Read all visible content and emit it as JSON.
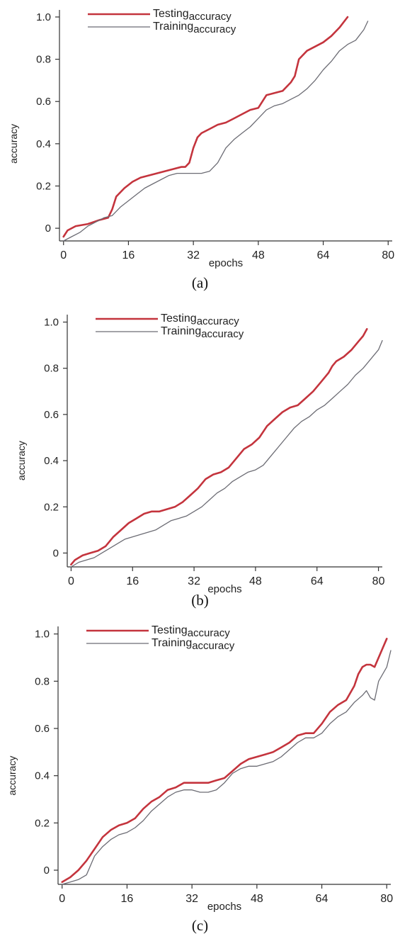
{
  "chart_data": [
    {
      "type": "line",
      "caption": "(a)",
      "xlabel": "epochs",
      "ylabel": "accuracy",
      "xticks": [
        0,
        16,
        32,
        48,
        64,
        80
      ],
      "yticks": [
        0,
        0.2,
        0.4,
        0.6,
        0.8,
        1.0
      ],
      "ytick_labels": [
        "0",
        "0.2",
        "0.4",
        "0.6",
        "0.8",
        "1.0"
      ],
      "xlim": [
        -1,
        81
      ],
      "ylim": [
        -0.06,
        1.02
      ],
      "legend": "top-left",
      "series": [
        {
          "name": "Testing accuracy",
          "legend_main": "Testing",
          "legend_sub": "accuracy",
          "color": "#c4343d",
          "x": [
            0,
            1,
            3,
            6,
            9,
            11,
            12,
            13,
            15,
            17,
            19,
            21,
            23,
            25,
            27,
            29,
            30,
            31,
            32,
            33,
            34,
            36,
            38,
            40,
            42,
            44,
            46,
            48,
            50,
            52,
            54,
            56,
            57,
            58,
            60,
            62,
            64,
            66,
            68,
            70
          ],
          "y": [
            -0.04,
            -0.01,
            0.01,
            0.02,
            0.04,
            0.05,
            0.09,
            0.15,
            0.19,
            0.22,
            0.24,
            0.25,
            0.26,
            0.27,
            0.28,
            0.29,
            0.29,
            0.31,
            0.38,
            0.43,
            0.45,
            0.47,
            0.49,
            0.5,
            0.52,
            0.54,
            0.56,
            0.57,
            0.63,
            0.64,
            0.65,
            0.69,
            0.72,
            0.8,
            0.84,
            0.86,
            0.88,
            0.91,
            0.95,
            1.0
          ]
        },
        {
          "name": "Training accuracy",
          "legend_main": "Training",
          "legend_sub": "accuracy",
          "color": "#6c6c74",
          "x": [
            0,
            2,
            4,
            6,
            8,
            10,
            12,
            14,
            16,
            18,
            20,
            22,
            24,
            26,
            28,
            30,
            32,
            34,
            36,
            38,
            40,
            42,
            44,
            46,
            48,
            50,
            52,
            54,
            56,
            58,
            60,
            62,
            64,
            66,
            68,
            70,
            72,
            74,
            75
          ],
          "y": [
            -0.06,
            -0.04,
            -0.02,
            0.01,
            0.03,
            0.05,
            0.06,
            0.1,
            0.13,
            0.16,
            0.19,
            0.21,
            0.23,
            0.25,
            0.26,
            0.26,
            0.26,
            0.26,
            0.27,
            0.31,
            0.38,
            0.42,
            0.45,
            0.48,
            0.52,
            0.56,
            0.58,
            0.59,
            0.61,
            0.63,
            0.66,
            0.7,
            0.75,
            0.79,
            0.84,
            0.87,
            0.89,
            0.94,
            0.98
          ]
        }
      ]
    },
    {
      "type": "line",
      "caption": "(b)",
      "xlabel": "epochs",
      "ylabel": "accuracy",
      "xticks": [
        0,
        16,
        32,
        48,
        64,
        80
      ],
      "yticks": [
        0,
        0.2,
        0.4,
        0.6,
        0.8,
        1.0
      ],
      "ytick_labels": [
        "0",
        "0.2",
        "0.4",
        "0.6",
        "0.8",
        "1.0"
      ],
      "xlim": [
        -1,
        81
      ],
      "ylim": [
        -0.06,
        1.02
      ],
      "legend": "top-left",
      "series": [
        {
          "name": "Testing accuracy",
          "legend_main": "Testing",
          "legend_sub": "accuracy",
          "color": "#c4343d",
          "x": [
            0,
            1,
            3,
            5,
            7,
            9,
            11,
            13,
            15,
            17,
            19,
            21,
            23,
            25,
            27,
            29,
            31,
            33,
            35,
            37,
            39,
            41,
            43,
            45,
            47,
            49,
            51,
            53,
            55,
            57,
            59,
            61,
            63,
            65,
            67,
            68,
            69,
            71,
            73,
            75,
            76,
            77
          ],
          "y": [
            -0.05,
            -0.03,
            -0.01,
            0.0,
            0.01,
            0.03,
            0.07,
            0.1,
            0.13,
            0.15,
            0.17,
            0.18,
            0.18,
            0.19,
            0.2,
            0.22,
            0.25,
            0.28,
            0.32,
            0.34,
            0.35,
            0.37,
            0.41,
            0.45,
            0.47,
            0.5,
            0.55,
            0.58,
            0.61,
            0.63,
            0.64,
            0.67,
            0.7,
            0.74,
            0.78,
            0.81,
            0.83,
            0.85,
            0.88,
            0.92,
            0.94,
            0.97
          ]
        },
        {
          "name": "Training accuracy",
          "legend_main": "Training",
          "legend_sub": "accuracy",
          "color": "#6c6c74",
          "x": [
            0,
            2,
            4,
            6,
            8,
            10,
            12,
            14,
            16,
            18,
            20,
            22,
            24,
            26,
            28,
            30,
            32,
            34,
            36,
            38,
            40,
            42,
            44,
            46,
            48,
            50,
            52,
            54,
            56,
            58,
            60,
            62,
            64,
            66,
            68,
            70,
            72,
            74,
            76,
            78,
            80,
            81
          ],
          "y": [
            -0.06,
            -0.04,
            -0.03,
            -0.02,
            0.0,
            0.02,
            0.04,
            0.06,
            0.07,
            0.08,
            0.09,
            0.1,
            0.12,
            0.14,
            0.15,
            0.16,
            0.18,
            0.2,
            0.23,
            0.26,
            0.28,
            0.31,
            0.33,
            0.35,
            0.36,
            0.38,
            0.42,
            0.46,
            0.5,
            0.54,
            0.57,
            0.59,
            0.62,
            0.64,
            0.67,
            0.7,
            0.73,
            0.77,
            0.8,
            0.84,
            0.88,
            0.92
          ]
        }
      ]
    },
    {
      "type": "line",
      "caption": "(c)",
      "xlabel": "epochs",
      "ylabel": "accuracy",
      "xticks": [
        0,
        16,
        32,
        48,
        64,
        80
      ],
      "yticks": [
        0,
        0.2,
        0.4,
        0.6,
        0.8,
        1.0
      ],
      "ytick_labels": [
        "0",
        "0.2",
        "0.4",
        "0.6",
        "0.8",
        "1.0"
      ],
      "xlim": [
        -1,
        81
      ],
      "ylim": [
        -0.06,
        1.02
      ],
      "legend": "top-left",
      "series": [
        {
          "name": "Testing accuracy",
          "legend_main": "Testing",
          "legend_sub": "accuracy",
          "color": "#c4343d",
          "x": [
            0,
            2,
            4,
            6,
            8,
            10,
            12,
            14,
            16,
            18,
            20,
            22,
            24,
            26,
            28,
            30,
            32,
            34,
            36,
            38,
            40,
            42,
            44,
            46,
            48,
            50,
            52,
            54,
            56,
            58,
            60,
            62,
            64,
            66,
            68,
            70,
            72,
            73,
            74,
            75,
            76,
            77,
            78,
            79,
            80
          ],
          "y": [
            -0.05,
            -0.03,
            0.0,
            0.04,
            0.09,
            0.14,
            0.17,
            0.19,
            0.2,
            0.22,
            0.26,
            0.29,
            0.31,
            0.34,
            0.35,
            0.37,
            0.37,
            0.37,
            0.37,
            0.38,
            0.39,
            0.42,
            0.45,
            0.47,
            0.48,
            0.49,
            0.5,
            0.52,
            0.54,
            0.57,
            0.58,
            0.58,
            0.62,
            0.67,
            0.7,
            0.72,
            0.78,
            0.83,
            0.86,
            0.87,
            0.87,
            0.86,
            0.9,
            0.94,
            0.98
          ]
        },
        {
          "name": "Training accuracy",
          "legend_main": "Training",
          "legend_sub": "accuracy",
          "color": "#6c6c74",
          "x": [
            0,
            2,
            4,
            6,
            7,
            8,
            10,
            12,
            14,
            16,
            18,
            20,
            22,
            24,
            26,
            28,
            30,
            32,
            34,
            36,
            38,
            40,
            42,
            44,
            46,
            48,
            50,
            52,
            54,
            56,
            58,
            60,
            62,
            64,
            66,
            68,
            70,
            72,
            74,
            75,
            76,
            77,
            78,
            80,
            81
          ],
          "y": [
            -0.06,
            -0.05,
            -0.04,
            -0.02,
            0.02,
            0.06,
            0.1,
            0.13,
            0.15,
            0.16,
            0.18,
            0.21,
            0.25,
            0.28,
            0.31,
            0.33,
            0.34,
            0.34,
            0.33,
            0.33,
            0.34,
            0.37,
            0.41,
            0.43,
            0.44,
            0.44,
            0.45,
            0.46,
            0.48,
            0.51,
            0.54,
            0.56,
            0.56,
            0.58,
            0.62,
            0.65,
            0.67,
            0.71,
            0.74,
            0.76,
            0.73,
            0.72,
            0.8,
            0.86,
            0.93
          ]
        }
      ]
    }
  ]
}
